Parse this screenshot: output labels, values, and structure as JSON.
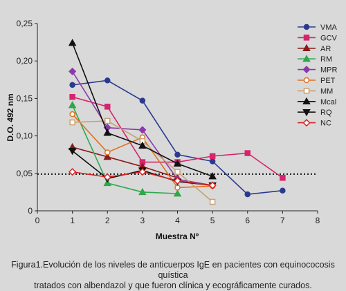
{
  "chart_data": {
    "type": "line",
    "xlabel": "Muestra Nº",
    "ylabel": "D.O. 492 nm",
    "xlim": [
      0,
      8
    ],
    "ylim": [
      0,
      0.25
    ],
    "x_ticks": [
      "0",
      "1",
      "2",
      "3",
      "4",
      "5",
      "6",
      "7",
      "8"
    ],
    "y_ticks": [
      "0",
      "0,05",
      "0,10",
      "0,15",
      "0,20",
      "0,25"
    ],
    "y_tick_values": [
      0,
      0.05,
      0.1,
      0.15,
      0.2,
      0.25
    ],
    "reference_line": 0.049,
    "legend_position": "right",
    "series": [
      {
        "name": "VMA",
        "color": "#2b3a8f",
        "marker": "circle",
        "filled": true,
        "x": [
          1,
          2,
          3,
          4,
          5,
          6,
          7
        ],
        "y": [
          0.168,
          0.174,
          0.147,
          0.075,
          0.066,
          0.022,
          0.027
        ]
      },
      {
        "name": "GCV",
        "color": "#d6246e",
        "marker": "square",
        "filled": true,
        "x": [
          1,
          2,
          3,
          4,
          5,
          6,
          7
        ],
        "y": [
          0.152,
          0.139,
          0.065,
          0.065,
          0.073,
          0.077,
          0.044
        ]
      },
      {
        "name": "AR",
        "color": "#8b1a1a",
        "marker": "triangle",
        "filled": true,
        "x": [
          1,
          2,
          3,
          4
        ],
        "y": [
          0.085,
          0.072,
          0.059,
          0.044
        ]
      },
      {
        "name": "RM",
        "color": "#2ea84a",
        "marker": "triangle",
        "filled": true,
        "x": [
          1,
          2,
          3,
          4
        ],
        "y": [
          0.141,
          0.037,
          0.025,
          0.023
        ]
      },
      {
        "name": "MPR",
        "color": "#8a3aa8",
        "marker": "diamond",
        "filled": true,
        "x": [
          1,
          2,
          3,
          4,
          5
        ],
        "y": [
          0.186,
          0.111,
          0.108,
          0.042,
          0.034
        ]
      },
      {
        "name": "PET",
        "color": "#e0701e",
        "marker": "circle",
        "filled": false,
        "x": [
          1,
          2,
          3,
          4,
          5
        ],
        "y": [
          0.129,
          0.078,
          0.098,
          0.031,
          0.033
        ]
      },
      {
        "name": "MM",
        "color": "#c9a070",
        "marker": "square",
        "filled": false,
        "x": [
          1,
          2,
          3,
          4,
          5
        ],
        "y": [
          0.118,
          0.12,
          0.093,
          0.052,
          0.012
        ]
      },
      {
        "name": "Mcal",
        "color": "#111111",
        "marker": "triangle",
        "filled": true,
        "x": [
          1,
          2,
          3,
          4,
          5
        ],
        "y": [
          0.224,
          0.104,
          0.087,
          0.063,
          0.046
        ]
      },
      {
        "name": "RQ",
        "color": "#111111",
        "marker": "triangle-down",
        "filled": true,
        "x": [
          1,
          2,
          3,
          4,
          5
        ],
        "y": [
          0.08,
          0.043,
          0.054,
          0.039,
          0.034
        ]
      },
      {
        "name": "NC",
        "color": "#d62020",
        "marker": "diamond",
        "filled": false,
        "x": [
          1,
          2,
          3,
          4,
          5
        ],
        "y": [
          0.052,
          0.045,
          0.052,
          0.04,
          0.034
        ]
      }
    ]
  },
  "caption": {
    "line1": "Figura1.Evolución de los niveles de anticuerpos IgE en pacientes con equinococosis quística",
    "line2": "tratados con albendazol y que fueron clínica y ecográficamente curados."
  }
}
